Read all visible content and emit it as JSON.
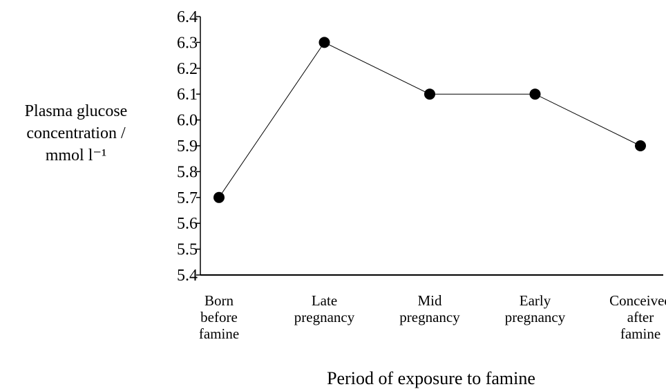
{
  "chart_data": {
    "type": "line",
    "categories": [
      "Born\nbefore\nfamine",
      "Late\npregnancy",
      "Mid\npregnancy",
      "Early\npregnancy",
      "Conceived\nafter\nfamine"
    ],
    "values": [
      5.7,
      6.3,
      6.1,
      6.1,
      5.9
    ],
    "color": "#000000",
    "ylim": [
      5.4,
      6.4
    ],
    "yticks": [
      {
        "value": 5.4,
        "label": "5.4"
      },
      5.5,
      5.6,
      5.7,
      5.8,
      5.9,
      {
        "value": 6.0,
        "label": "6.0"
      },
      6.1,
      6.2,
      6.3,
      6.4
    ],
    "xlabel": "Period of exposure to famine",
    "ylabel": "Plasma glucose\nconcentration /\nmmol l⁻¹"
  }
}
